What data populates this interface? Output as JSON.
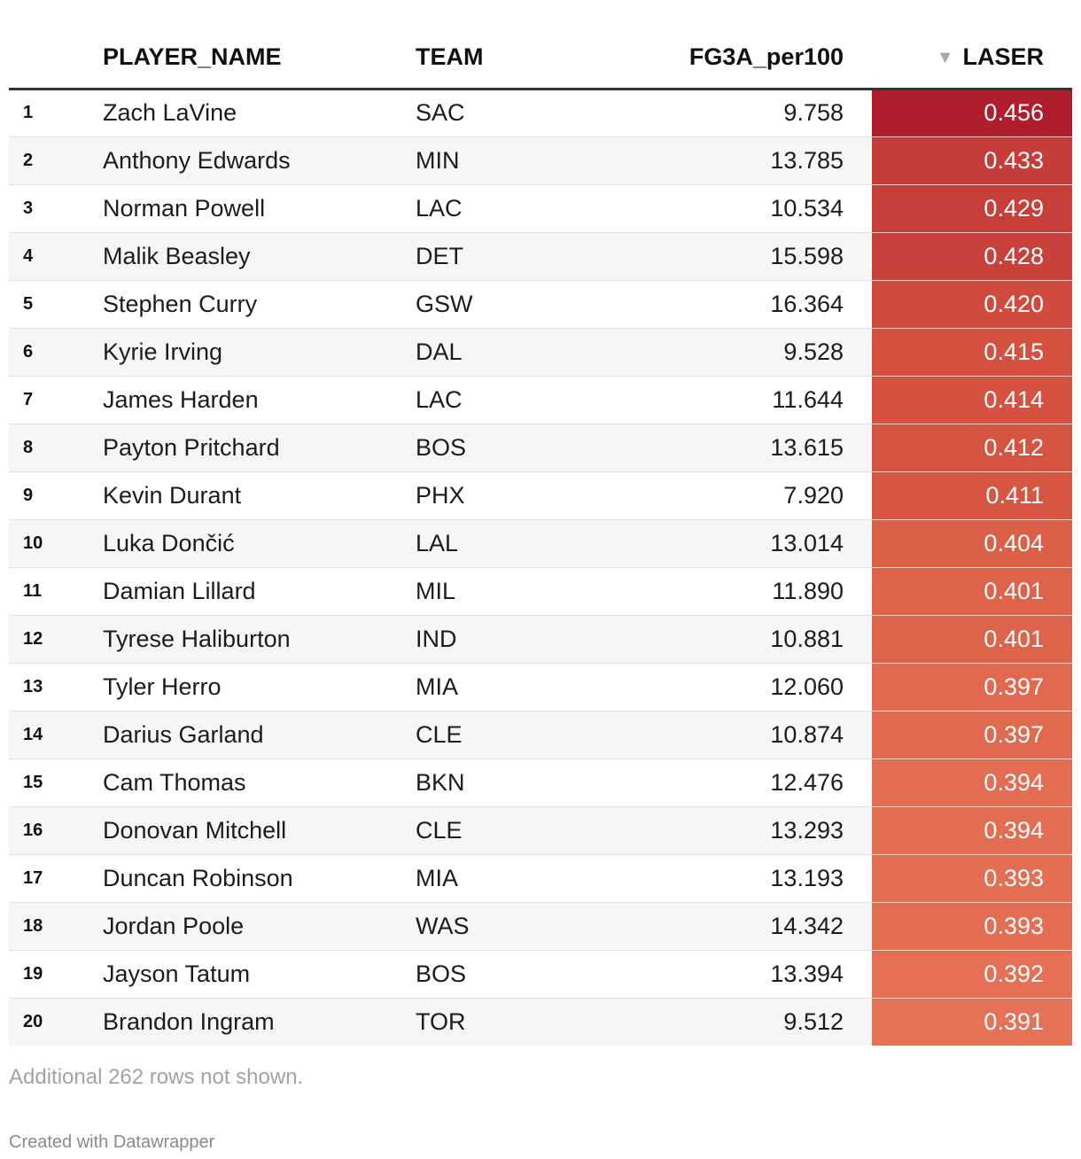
{
  "table": {
    "headers": {
      "player_name": "PLAYER_NAME",
      "team": "TEAM",
      "fg3a": "FG3A_per100",
      "laser": "LASER"
    },
    "sort_icon": "sort-descending-icon",
    "rows": [
      {
        "rank": "1",
        "name": "Zach LaVine",
        "team": "SAC",
        "fg3a": "9.758",
        "laser": "0.456",
        "color": "#b01d2c"
      },
      {
        "rank": "2",
        "name": "Anthony Edwards",
        "team": "MIN",
        "fg3a": "13.785",
        "laser": "0.433",
        "color": "#c53c38"
      },
      {
        "rank": "3",
        "name": "Norman Powell",
        "team": "LAC",
        "fg3a": "10.534",
        "laser": "0.429",
        "color": "#c83f39"
      },
      {
        "rank": "4",
        "name": "Malik Beasley",
        "team": "DET",
        "fg3a": "15.598",
        "laser": "0.428",
        "color": "#c9413a"
      },
      {
        "rank": "5",
        "name": "Stephen Curry",
        "team": "GSW",
        "fg3a": "16.364",
        "laser": "0.420",
        "color": "#d04b3e"
      },
      {
        "rank": "6",
        "name": "Kyrie Irving",
        "team": "DAL",
        "fg3a": "9.528",
        "laser": "0.415",
        "color": "#d45140"
      },
      {
        "rank": "7",
        "name": "James Harden",
        "team": "LAC",
        "fg3a": "11.644",
        "laser": "0.414",
        "color": "#d55241"
      },
      {
        "rank": "8",
        "name": "Payton Pritchard",
        "team": "BOS",
        "fg3a": "13.615",
        "laser": "0.412",
        "color": "#d65542"
      },
      {
        "rank": "9",
        "name": "Kevin Durant",
        "team": "PHX",
        "fg3a": "7.920",
        "laser": "0.411",
        "color": "#d75642"
      },
      {
        "rank": "10",
        "name": "Luka Dončić",
        "team": "LAL",
        "fg3a": "13.014",
        "laser": "0.404",
        "color": "#dc5f48"
      },
      {
        "rank": "11",
        "name": "Damian Lillard",
        "team": "MIL",
        "fg3a": "11.890",
        "laser": "0.401",
        "color": "#de634b"
      },
      {
        "rank": "12",
        "name": "Tyrese Haliburton",
        "team": "IND",
        "fg3a": "10.881",
        "laser": "0.401",
        "color": "#de634b"
      },
      {
        "rank": "13",
        "name": "Tyler Herro",
        "team": "MIA",
        "fg3a": "12.060",
        "laser": "0.397",
        "color": "#e1694f"
      },
      {
        "rank": "14",
        "name": "Darius Garland",
        "team": "CLE",
        "fg3a": "10.874",
        "laser": "0.397",
        "color": "#e1694f"
      },
      {
        "rank": "15",
        "name": "Cam Thomas",
        "team": "BKN",
        "fg3a": "12.476",
        "laser": "0.394",
        "color": "#e36d52"
      },
      {
        "rank": "16",
        "name": "Donovan Mitchell",
        "team": "CLE",
        "fg3a": "13.293",
        "laser": "0.394",
        "color": "#e36d52"
      },
      {
        "rank": "17",
        "name": "Duncan Robinson",
        "team": "MIA",
        "fg3a": "13.193",
        "laser": "0.393",
        "color": "#e46e53"
      },
      {
        "rank": "18",
        "name": "Jordan Poole",
        "team": "WAS",
        "fg3a": "14.342",
        "laser": "0.393",
        "color": "#e46e53"
      },
      {
        "rank": "19",
        "name": "Jayson Tatum",
        "team": "BOS",
        "fg3a": "13.394",
        "laser": "0.392",
        "color": "#e57055"
      },
      {
        "rank": "20",
        "name": "Brandon Ingram",
        "team": "TOR",
        "fg3a": "9.512",
        "laser": "0.391",
        "color": "#e57156"
      }
    ]
  },
  "footer": {
    "note": "Additional 262 rows not shown.",
    "credit": "Created with Datawrapper"
  }
}
